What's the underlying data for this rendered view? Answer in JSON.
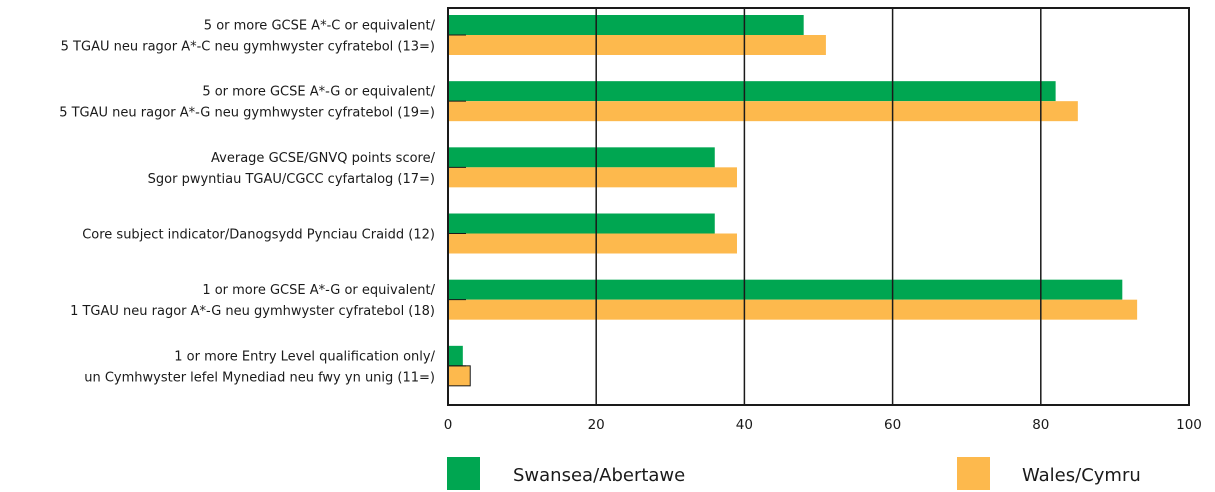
{
  "chart_data": {
    "type": "bar",
    "orientation": "horizontal",
    "categories": [
      [
        "5 or more GCSE A*-C or equivalent/",
        "5 TGAU neu ragor A*-C neu gymhwyster cyfratebol (13=)"
      ],
      [
        "5 or more GCSE A*-G or equivalent/",
        "5 TGAU neu ragor A*-G neu gymhwyster cyfratebol (19=)"
      ],
      [
        "Average GCSE/GNVQ points score/",
        "Sgor pwyntiau TGAU/CGCC cyfartalog (17=)"
      ],
      [
        "Core subject indicator/Danogsydd Pynciau Craidd (12)"
      ],
      [
        "1 or more GCSE A*-G or equivalent/",
        "1 TGAU neu ragor A*-G neu gymhwyster cyfratebol (18)"
      ],
      [
        "1 or more Entry Level qualification only/",
        "un Cymhwyster lefel Mynediad neu fwy yn unig (11=)"
      ]
    ],
    "series": [
      {
        "name": "Swansea/Abertawe",
        "color": "#00a651",
        "values": [
          48,
          82,
          36,
          36,
          91,
          2
        ]
      },
      {
        "name": "Wales/Cymru",
        "color": "#fdb94d",
        "values": [
          51,
          85,
          39,
          39,
          93,
          3
        ]
      }
    ],
    "xlim": [
      0,
      100
    ],
    "xticks": [
      0,
      20,
      40,
      60,
      80,
      100
    ],
    "gridlines": [
      20,
      40,
      60,
      80
    ],
    "legend_position": "bottom"
  }
}
